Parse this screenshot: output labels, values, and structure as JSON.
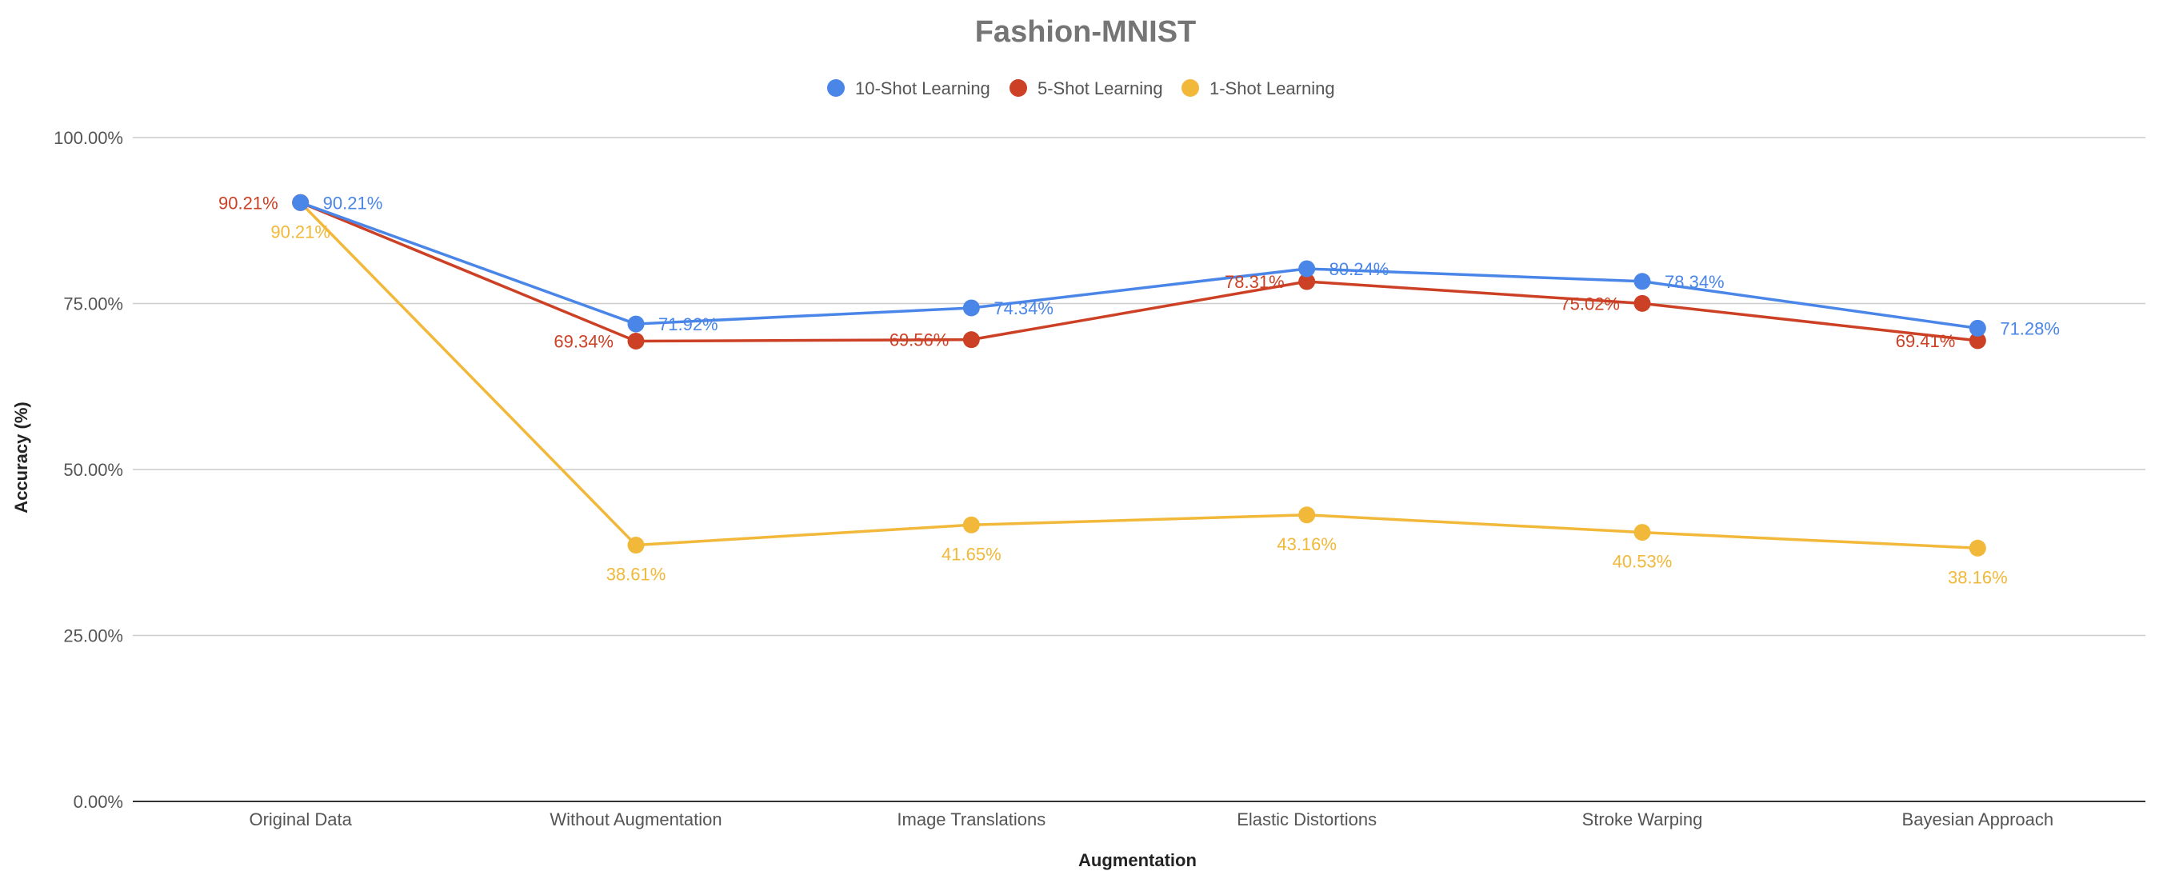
{
  "chart_data": {
    "type": "line",
    "title": "Fashion-MNIST",
    "xlabel": "Augmentation",
    "ylabel": "Accuracy (%)",
    "categories": [
      "Original Data",
      "Without Augmentation",
      "Image Translations",
      "Elastic Distortions",
      "Stroke Warping",
      "Bayesian Approach"
    ],
    "ylim": [
      0,
      100
    ],
    "yticks": [
      "0.00%",
      "25.00%",
      "50.00%",
      "75.00%",
      "100.00%"
    ],
    "grid": true,
    "legend_position": "top",
    "series": [
      {
        "name": "10-Shot Learning",
        "color": "#4a86e8",
        "values": [
          90.21,
          71.92,
          74.34,
          80.24,
          78.34,
          71.28
        ],
        "labels": [
          "90.21%",
          "71.92%",
          "74.34%",
          "80.24%",
          "78.34%",
          "71.28%"
        ]
      },
      {
        "name": "5-Shot Learning",
        "color": "#cc4125",
        "values": [
          90.21,
          69.34,
          69.56,
          78.31,
          75.02,
          69.41
        ],
        "labels": [
          "90.21%",
          "69.34%",
          "69.56%",
          "78.31%",
          "75.02%",
          "69.41%"
        ]
      },
      {
        "name": "1-Shot Learning",
        "color": "#f1b83a",
        "values": [
          90.21,
          38.61,
          41.65,
          43.16,
          40.53,
          38.16
        ],
        "labels": [
          "90.21%",
          "38.61%",
          "41.65%",
          "43.16%",
          "40.53%",
          "38.16%"
        ]
      }
    ]
  }
}
